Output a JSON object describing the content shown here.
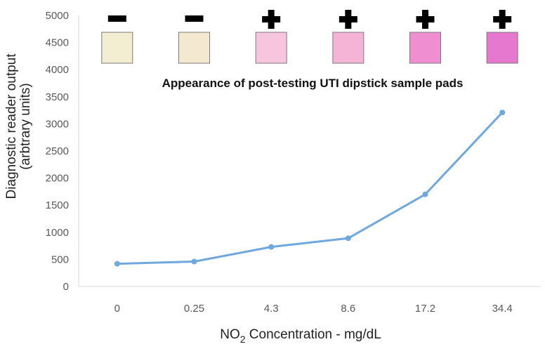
{
  "chart_data": {
    "type": "line",
    "categories": [
      "0",
      "0.25",
      "4.3",
      "8.6",
      "17.2",
      "34.4"
    ],
    "series": [
      {
        "values": [
          420,
          460,
          730,
          890,
          1700,
          3210
        ],
        "color": "#6FA8DC"
      }
    ],
    "xlabel_main": "NO",
    "xlabel_sub": "2",
    "xlabel_rest": " Concentration - mg/dL",
    "ylabel_line1": "Diagnostic reader output",
    "ylabel_line2": "(arbtrary units)",
    "ylim": [
      0,
      5000
    ],
    "yticks": [
      "0",
      "500",
      "1000",
      "1500",
      "2000",
      "2500",
      "3000",
      "3500",
      "4000",
      "4500",
      "5000"
    ],
    "grid": false,
    "annotation": "Appearance of post-testing UTI dipstick sample pads",
    "pads": [
      {
        "sign": "negative",
        "color": "#F3EDD2"
      },
      {
        "sign": "negative",
        "color": "#F4E8D0"
      },
      {
        "sign": "positive",
        "color": "#F7C6DE"
      },
      {
        "sign": "positive",
        "color": "#F5B4D6"
      },
      {
        "sign": "positive",
        "color": "#F08ED2"
      },
      {
        "sign": "positive",
        "color": "#E778D0"
      }
    ]
  }
}
